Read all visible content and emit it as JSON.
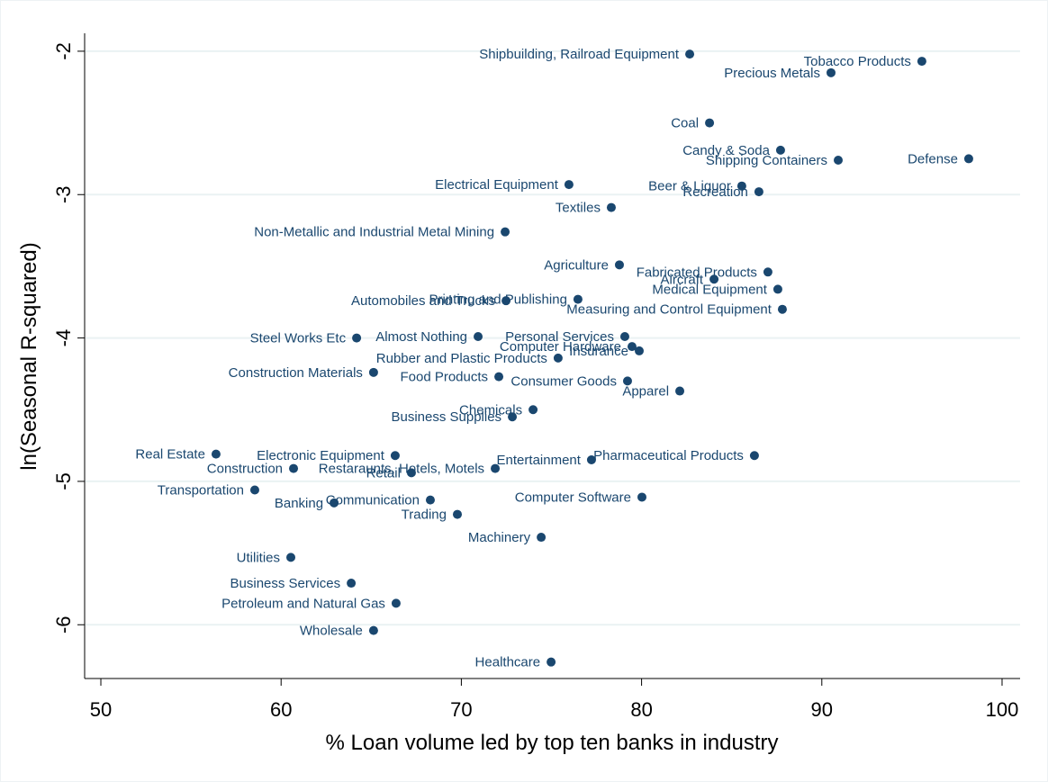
{
  "chart_data": {
    "type": "scatter",
    "x_label": "% Loan volume led by top ten banks in industry",
    "y_label": "ln(Seasonal R-squared)",
    "xlim": [
      49.1,
      101.0
    ],
    "ylim": [
      -6.375,
      -1.875
    ],
    "xticks": [
      50,
      60,
      70,
      80,
      90,
      100
    ],
    "yticks": [
      -2,
      -3,
      -4,
      -5,
      -6
    ],
    "grid": true,
    "color": "#1a476f",
    "labels": [
      "Shipbuilding, Railroad Equipment",
      "Tobacco Products",
      "Precious Metals",
      "Coal",
      "Candy & Soda",
      "Shipping Containers",
      "Defense",
      "Electrical Equipment",
      "Beer & Liquor",
      "Recreation",
      "Textiles",
      "Non-Metallic and Industrial Metal Mining",
      "Agriculture",
      "Fabricated Products",
      "Aircraft",
      "Medical Equipment",
      "Automobiles and Trucks",
      "Printing and Publishing",
      "Measuring and Control Equipment",
      "Steel Works Etc",
      "Almost Nothing",
      "Personal Services",
      "Computer Hardware",
      "Insurance",
      "Rubber and Plastic Products",
      "Construction Materials",
      "Food Products",
      "Consumer Goods",
      "Apparel",
      "Chemicals",
      "Business Supplies",
      "Real Estate",
      "Electronic Equipment",
      "Pharmaceutical Products",
      "Entertainment",
      "Construction",
      "Restaraunts, Hotels, Motels",
      "Retail",
      "Transportation",
      "Communication",
      "Banking",
      "Computer Software",
      "Trading",
      "Machinery",
      "Utilities",
      "Business Services",
      "Petroleum and Natural Gas",
      "Wholesale",
      "Healthcare"
    ],
    "x": [
      82.67,
      95.55,
      90.51,
      83.77,
      87.71,
      90.91,
      98.15,
      75.97,
      85.56,
      86.51,
      78.32,
      72.43,
      78.77,
      87.01,
      84.02,
      87.56,
      72.48,
      76.47,
      87.81,
      64.19,
      70.93,
      79.07,
      79.47,
      79.87,
      75.37,
      65.13,
      72.08,
      79.22,
      82.12,
      73.98,
      72.83,
      56.39,
      66.33,
      86.26,
      77.22,
      60.69,
      71.88,
      67.23,
      58.54,
      68.28,
      62.94,
      80.02,
      69.78,
      74.43,
      60.54,
      63.89,
      66.38,
      65.13,
      74.98
    ],
    "values": [
      -2.02,
      -2.07,
      -2.15,
      -2.5,
      -2.69,
      -2.76,
      -2.75,
      -2.93,
      -2.94,
      -2.98,
      -3.09,
      -3.26,
      -3.49,
      -3.54,
      -3.59,
      -3.66,
      -3.74,
      -3.73,
      -3.8,
      -4.0,
      -3.99,
      -3.99,
      -4.06,
      -4.09,
      -4.14,
      -4.24,
      -4.27,
      -4.3,
      -4.37,
      -4.5,
      -4.55,
      -4.81,
      -4.82,
      -4.82,
      -4.85,
      -4.91,
      -4.91,
      -4.94,
      -5.06,
      -5.13,
      -5.15,
      -5.11,
      -5.23,
      -5.39,
      -5.53,
      -5.71,
      -5.85,
      -6.04,
      -6.26
    ]
  }
}
